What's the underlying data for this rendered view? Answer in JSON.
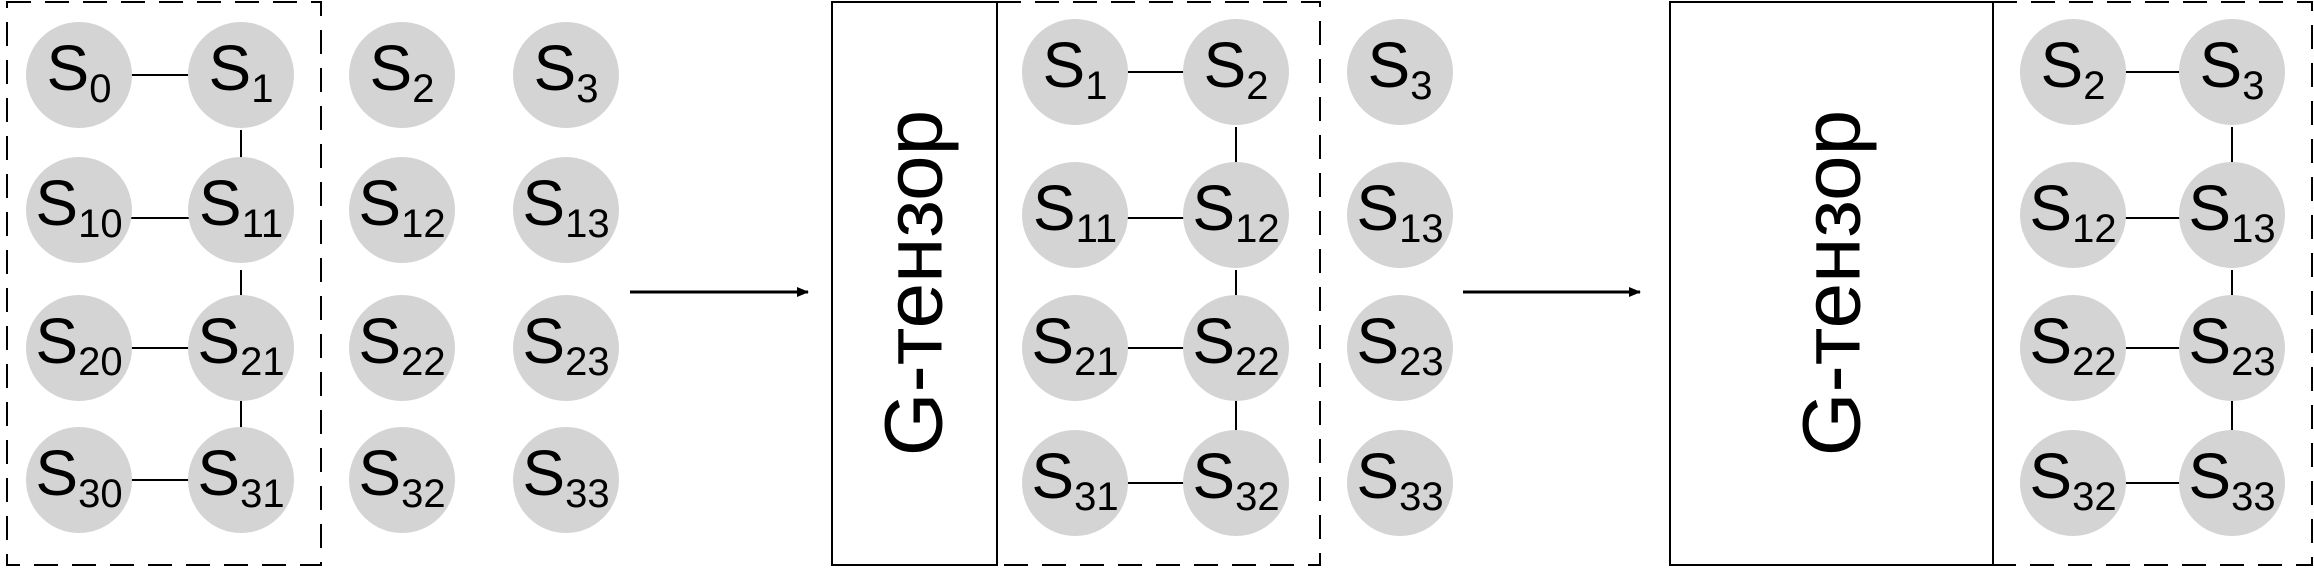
{
  "colors": {
    "node_fill": "#d4d4d4",
    "stroke": "#000000",
    "background": "#ffffff"
  },
  "tensor_label": "G-тензор",
  "groups": [
    {
      "rows": [
        [
          {
            "main": "S",
            "sub": "0"
          },
          {
            "main": "S",
            "sub": "1"
          },
          {
            "main": "S",
            "sub": "2"
          },
          {
            "main": "S",
            "sub": "3"
          }
        ],
        [
          {
            "main": "S",
            "sub": "10"
          },
          {
            "main": "S",
            "sub": "11"
          },
          {
            "main": "S",
            "sub": "12"
          },
          {
            "main": "S",
            "sub": "13"
          }
        ],
        [
          {
            "main": "S",
            "sub": "20"
          },
          {
            "main": "S",
            "sub": "21"
          },
          {
            "main": "S",
            "sub": "22"
          },
          {
            "main": "S",
            "sub": "23"
          }
        ],
        [
          {
            "main": "S",
            "sub": "30"
          },
          {
            "main": "S",
            "sub": "31"
          },
          {
            "main": "S",
            "sub": "32"
          },
          {
            "main": "S",
            "sub": "33"
          }
        ]
      ]
    },
    {
      "rows": [
        [
          {
            "main": "S",
            "sub": "1"
          },
          {
            "main": "S",
            "sub": "2"
          },
          {
            "main": "S",
            "sub": "3"
          }
        ],
        [
          {
            "main": "S",
            "sub": "11"
          },
          {
            "main": "S",
            "sub": "12"
          },
          {
            "main": "S",
            "sub": "13"
          }
        ],
        [
          {
            "main": "S",
            "sub": "21"
          },
          {
            "main": "S",
            "sub": "22"
          },
          {
            "main": "S",
            "sub": "23"
          }
        ],
        [
          {
            "main": "S",
            "sub": "31"
          },
          {
            "main": "S",
            "sub": "32"
          },
          {
            "main": "S",
            "sub": "33"
          }
        ]
      ]
    },
    {
      "rows": [
        [
          {
            "main": "S",
            "sub": "2"
          },
          {
            "main": "S",
            "sub": "3"
          }
        ],
        [
          {
            "main": "S",
            "sub": "12"
          },
          {
            "main": "S",
            "sub": "13"
          }
        ],
        [
          {
            "main": "S",
            "sub": "22"
          },
          {
            "main": "S",
            "sub": "23"
          }
        ],
        [
          {
            "main": "S",
            "sub": "32"
          },
          {
            "main": "S",
            "sub": "33"
          }
        ]
      ]
    }
  ]
}
